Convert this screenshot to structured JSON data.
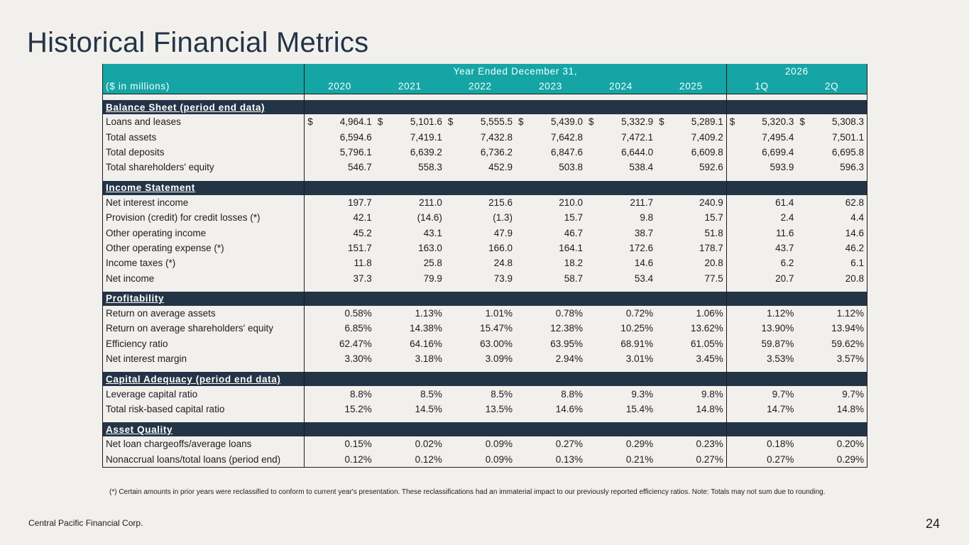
{
  "title": "Historical Financial Metrics",
  "header": {
    "group_annual": "Year Ended December 31,",
    "group_interim": "2026",
    "units_label": "($ in millions)",
    "years": [
      "2020",
      "2021",
      "2022",
      "2023",
      "2024",
      "2025",
      "1Q",
      "2Q"
    ]
  },
  "sections": [
    {
      "label": "Balance Sheet (period end data)",
      "rows": [
        {
          "label": "Loans and leases",
          "dollar": true,
          "values": [
            "4,964.1",
            "5,101.6",
            "5,555.5",
            "5,439.0",
            "5,332.9",
            "5,289.1",
            "5,320.3",
            "5,308.3"
          ]
        },
        {
          "label": "Total assets",
          "values": [
            "6,594.6",
            "7,419.1",
            "7,432.8",
            "7,642.8",
            "7,472.1",
            "7,409.2",
            "7,495.4",
            "7,501.1"
          ]
        },
        {
          "label": "Total deposits",
          "values": [
            "5,796.1",
            "6,639.2",
            "6,736.2",
            "6,847.6",
            "6,644.0",
            "6,609.8",
            "6,699.4",
            "6,695.8"
          ]
        },
        {
          "label": "Total shareholders' equity",
          "values": [
            "546.7",
            "558.3",
            "452.9",
            "503.8",
            "538.4",
            "592.6",
            "593.9",
            "596.3"
          ]
        }
      ]
    },
    {
      "label": "Income Statement",
      "rows": [
        {
          "label": "Net interest income",
          "values": [
            "197.7",
            "211.0",
            "215.6",
            "210.0",
            "211.7",
            "240.9",
            "61.4",
            "62.8"
          ]
        },
        {
          "label": "Provision (credit) for credit losses (*)",
          "values": [
            "42.1",
            "(14.6)",
            "(1.3)",
            "15.7",
            "9.8",
            "15.7",
            "2.4",
            "4.4"
          ]
        },
        {
          "label": "Other operating income",
          "values": [
            "45.2",
            "43.1",
            "47.9",
            "46.7",
            "38.7",
            "51.8",
            "11.6",
            "14.6"
          ]
        },
        {
          "label": "Other operating expense  (*)",
          "values": [
            "151.7",
            "163.0",
            "166.0",
            "164.1",
            "172.6",
            "178.7",
            "43.7",
            "46.2"
          ]
        },
        {
          "label": "Income taxes (*)",
          "values": [
            "11.8",
            "25.8",
            "24.8",
            "18.2",
            "14.6",
            "20.8",
            "6.2",
            "6.1"
          ]
        },
        {
          "label": "Net income",
          "values": [
            "37.3",
            "79.9",
            "73.9",
            "58.7",
            "53.4",
            "77.5",
            "20.7",
            "20.8"
          ]
        }
      ]
    },
    {
      "label": "Profitability",
      "rows": [
        {
          "label": "Return on average assets",
          "values": [
            "0.58%",
            "1.13%",
            "1.01%",
            "0.78%",
            "0.72%",
            "1.06%",
            "1.12%",
            "1.12%"
          ]
        },
        {
          "label": "Return on average shareholders' equity",
          "values": [
            "6.85%",
            "14.38%",
            "15.47%",
            "12.38%",
            "10.25%",
            "13.62%",
            "13.90%",
            "13.94%"
          ]
        },
        {
          "label": "Efficiency ratio",
          "values": [
            "62.47%",
            "64.16%",
            "63.00%",
            "63.95%",
            "68.91%",
            "61.05%",
            "59.87%",
            "59.62%"
          ]
        },
        {
          "label": "Net interest margin",
          "values": [
            "3.30%",
            "3.18%",
            "3.09%",
            "2.94%",
            "3.01%",
            "3.45%",
            "3.53%",
            "3.57%"
          ]
        }
      ]
    },
    {
      "label": "Capital Adequacy (period end data)",
      "rows": [
        {
          "label": "Leverage capital ratio",
          "values": [
            "8.8%",
            "8.5%",
            "8.5%",
            "8.8%",
            "9.3%",
            "9.8%",
            "9.7%",
            "9.7%"
          ]
        },
        {
          "label": "Total risk-based capital ratio",
          "values": [
            "15.2%",
            "14.5%",
            "13.5%",
            "14.6%",
            "15.4%",
            "14.8%",
            "14.7%",
            "14.8%"
          ]
        }
      ]
    },
    {
      "label": "Asset Quality",
      "rows": [
        {
          "label": "Net loan chargeoffs/average loans",
          "values": [
            "0.15%",
            "0.02%",
            "0.09%",
            "0.27%",
            "0.29%",
            "0.23%",
            "0.18%",
            "0.20%"
          ]
        },
        {
          "label": "Nonaccrual loans/total loans (period end)",
          "values": [
            "0.12%",
            "0.12%",
            "0.09%",
            "0.13%",
            "0.21%",
            "0.27%",
            "0.27%",
            "0.29%"
          ]
        }
      ]
    }
  ],
  "dollar_sign": "$",
  "footnote": "(*) Certain amounts in prior years were reclassified to conform to current year's presentation. These reclassifications had an immaterial impact to our previously reported efficiency ratios. Note: Totals may not sum due to rounding.",
  "footer": {
    "company": "Central Pacific Financial Corp.",
    "page_number": "24"
  },
  "colors": {
    "header_teal": "#16a5a5",
    "section_navy": "#233446",
    "background": "#f2f0ed",
    "title": "#233446"
  }
}
